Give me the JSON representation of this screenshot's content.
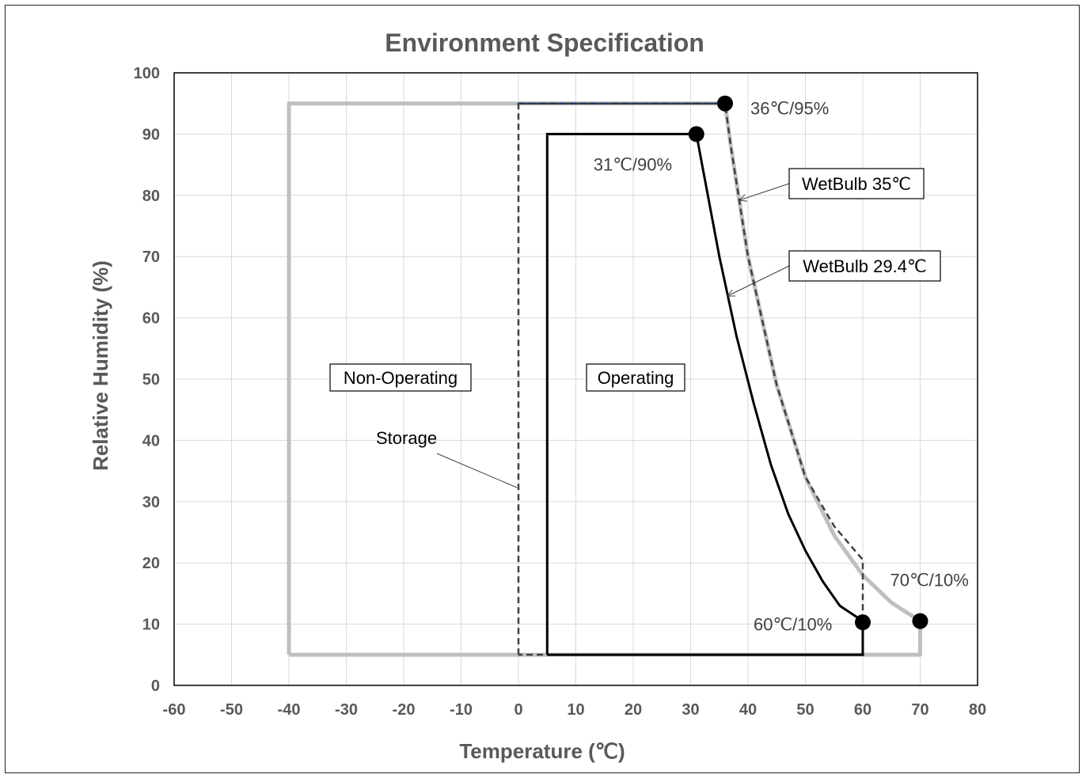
{
  "chart_data": {
    "type": "line",
    "title": "Environment Specification",
    "xlabel": "Temperature (℃)",
    "ylabel": "Relative Humidity (%)",
    "xlim": [
      -60,
      80
    ],
    "ylim": [
      0,
      100
    ],
    "xticks": [
      -60,
      -50,
      -40,
      -30,
      -20,
      -10,
      0,
      10,
      20,
      30,
      40,
      50,
      60,
      70,
      80
    ],
    "yticks": [
      0,
      10,
      20,
      30,
      40,
      50,
      60,
      70,
      80,
      90,
      100
    ],
    "grid": true,
    "colors": {
      "non_operating": "#bfbfbf",
      "operating": "#000000",
      "storage_dashed": "#404040",
      "storage_top": "#1f3864",
      "grid": "#d9d9d9"
    },
    "series": [
      {
        "id": "non-operating",
        "x": [
          -40,
          -40,
          36,
          37,
          40,
          45,
          50,
          55,
          60,
          65,
          70,
          70,
          -40
        ],
        "y": [
          5,
          95,
          95,
          88,
          70,
          49,
          34,
          24.5,
          18,
          13.5,
          10.5,
          5,
          5
        ]
      },
      {
        "id": "operating",
        "x": [
          5,
          5,
          31,
          32,
          35,
          38,
          41,
          44,
          47,
          50,
          53,
          56,
          60,
          60,
          5
        ],
        "y": [
          5,
          90,
          90,
          85,
          70,
          57,
          46,
          36,
          28,
          22,
          17,
          13,
          10.5,
          5,
          5
        ]
      },
      {
        "id": "storage",
        "x": [
          0,
          0,
          36,
          37,
          40,
          45,
          50,
          55,
          60,
          60,
          0
        ],
        "y": [
          5,
          95,
          95,
          88,
          70,
          49,
          34,
          26,
          20.5,
          5,
          5
        ]
      }
    ],
    "points": [
      {
        "x": 36,
        "y": 95,
        "label": "36℃/95%"
      },
      {
        "x": 31,
        "y": 90,
        "label": "31℃/90%"
      },
      {
        "x": 60,
        "y": 10.3,
        "label": "60℃/10%"
      },
      {
        "x": 70,
        "y": 10.5,
        "label": "70℃/10%"
      }
    ],
    "annotations": [
      {
        "text": "Non-Operating",
        "boxed": true
      },
      {
        "text": "Operating",
        "boxed": true
      },
      {
        "text": "Storage",
        "boxed": false
      },
      {
        "text": "WetBulb 35℃",
        "boxed": true
      },
      {
        "text": "WetBulb 29.4℃",
        "boxed": true
      }
    ]
  }
}
